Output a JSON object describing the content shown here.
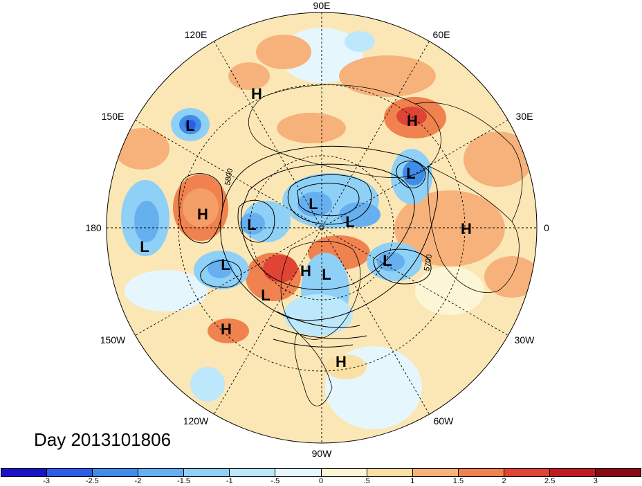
{
  "longitude_labels": {
    "top": "90E",
    "bottom": "90W",
    "left": "180",
    "right": "0",
    "upper_left_1": "120E",
    "upper_left_2": "150E",
    "upper_right_1": "60E",
    "upper_right_2": "30E",
    "lower_left_1": "150W",
    "lower_left_2": "120W",
    "lower_right_1": "30W",
    "lower_right_2": "60W"
  },
  "pressure_centers": [
    {
      "label": "L"
    },
    {
      "label": "H"
    },
    {
      "label": "H"
    },
    {
      "label": "L"
    },
    {
      "label": "H"
    },
    {
      "label": "L"
    },
    {
      "label": "L"
    },
    {
      "label": "L"
    },
    {
      "label": "L"
    },
    {
      "label": "H"
    },
    {
      "label": "L"
    },
    {
      "label": "L"
    },
    {
      "label": "H"
    },
    {
      "label": "L"
    },
    {
      "label": "L"
    },
    {
      "label": "H"
    },
    {
      "label": "H"
    }
  ],
  "contour_labels": {
    "left": "5800",
    "right": "5700"
  },
  "day_label": "Day 2013101806",
  "colorbar": {
    "ticks": [
      "-3",
      "-2.5",
      "-2",
      "-1.5",
      "-1",
      "-.5",
      "0",
      ".5",
      "1",
      "1.5",
      "2",
      "2.5",
      "3"
    ],
    "colors": [
      "#1a14c8",
      "#2a5ee6",
      "#3f8de9",
      "#66b0f0",
      "#8fd0f7",
      "#bde8fb",
      "#e6f6fd",
      "#fdf6d6",
      "#fbe0a6",
      "#f6b27a",
      "#f0824f",
      "#e04434",
      "#c21a1f",
      "#8c0a14"
    ]
  }
}
